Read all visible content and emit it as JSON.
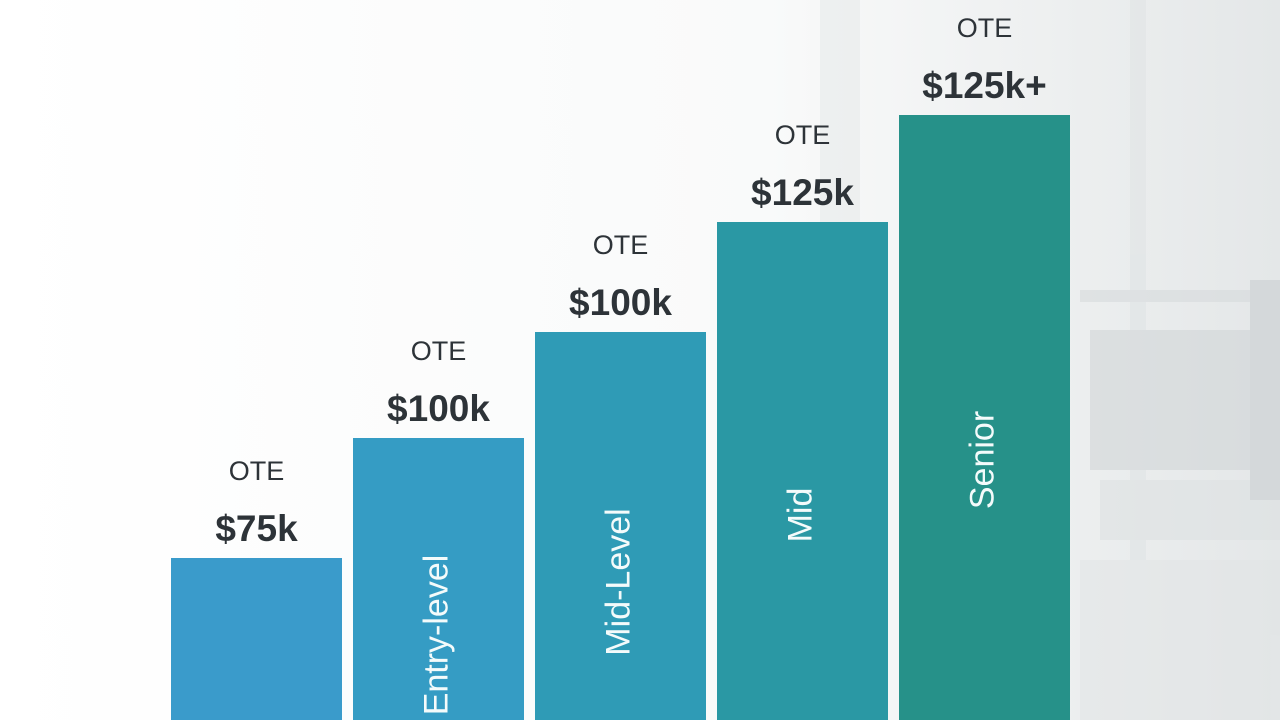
{
  "steps": [
    {
      "caption": "OTE",
      "amount": "$75k"
    },
    {
      "caption": "OTE",
      "amount": "$100k",
      "level": "Entry-level"
    },
    {
      "caption": "OTE",
      "amount": "$100k",
      "level": "Mid-Level"
    },
    {
      "caption": "OTE",
      "amount": "$125k",
      "level": "Mid"
    },
    {
      "caption": "OTE",
      "amount": "$125k+",
      "level": "Senior"
    }
  ]
}
